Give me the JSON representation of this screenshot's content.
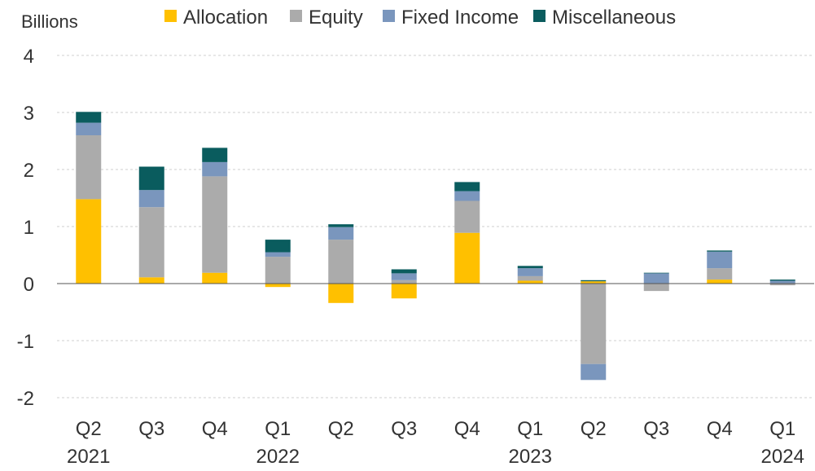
{
  "chart_data": {
    "type": "bar",
    "stacked": true,
    "ylabel": "Billions",
    "ylim": [
      -2,
      4
    ],
    "yticks": [
      4,
      3,
      2,
      1,
      0,
      -1,
      -2
    ],
    "grid": true,
    "legend_position": "top",
    "categories": [
      {
        "quarter": "Q2",
        "year": "2021"
      },
      {
        "quarter": "Q3",
        "year": ""
      },
      {
        "quarter": "Q4",
        "year": ""
      },
      {
        "quarter": "Q1",
        "year": "2022"
      },
      {
        "quarter": "Q2",
        "year": ""
      },
      {
        "quarter": "Q3",
        "year": ""
      },
      {
        "quarter": "Q4",
        "year": ""
      },
      {
        "quarter": "Q1",
        "year": "2023"
      },
      {
        "quarter": "Q2",
        "year": ""
      },
      {
        "quarter": "Q3",
        "year": ""
      },
      {
        "quarter": "Q4",
        "year": ""
      },
      {
        "quarter": "Q1",
        "year": "2024"
      }
    ],
    "series": [
      {
        "name": "Allocation",
        "color": "#FFC000",
        "values": [
          1.48,
          0.11,
          0.19,
          -0.06,
          -0.34,
          -0.26,
          0.89,
          0.05,
          0.04,
          0.0,
          0.07,
          0.0
        ]
      },
      {
        "name": "Equity",
        "color": "#ABABAB",
        "values": [
          1.12,
          1.23,
          1.69,
          0.47,
          0.77,
          0.06,
          0.56,
          0.08,
          -1.41,
          -0.13,
          0.2,
          -0.03
        ]
      },
      {
        "name": "Fixed Income",
        "color": "#7A96BD",
        "values": [
          0.22,
          0.3,
          0.25,
          0.08,
          0.22,
          0.12,
          0.17,
          0.14,
          -0.28,
          0.18,
          0.29,
          0.05
        ]
      },
      {
        "name": "Miscellaneous",
        "color": "#0A5C5E",
        "values": [
          0.19,
          0.41,
          0.25,
          0.22,
          0.05,
          0.07,
          0.16,
          0.04,
          0.02,
          0.01,
          0.02,
          0.02
        ]
      }
    ]
  }
}
